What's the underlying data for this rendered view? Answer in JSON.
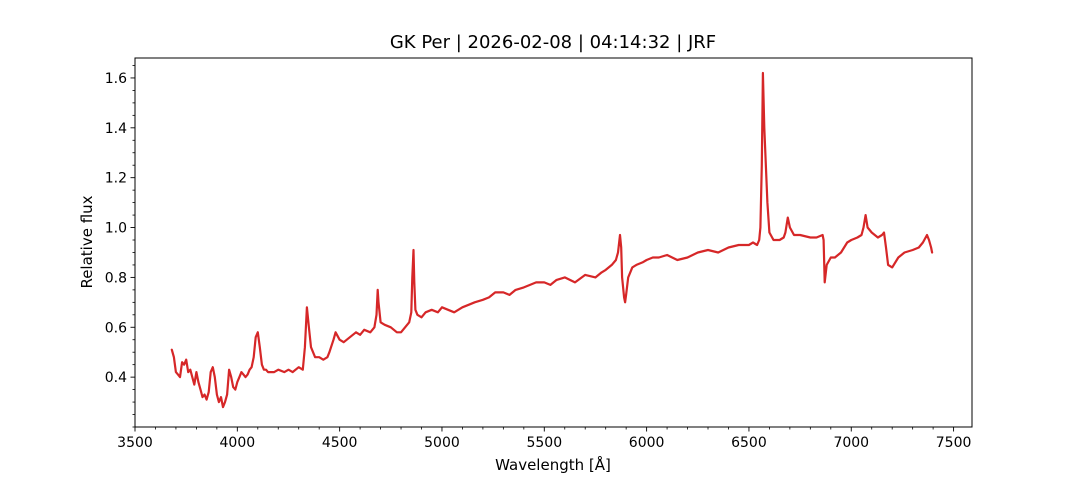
{
  "chart_data": {
    "type": "line",
    "title": "GK Per | 2026-02-08 | 04:14:32 | JRF",
    "xlabel": "Wavelength [Å]",
    "ylabel": "Relative flux",
    "xlim": [
      3500,
      7590
    ],
    "ylim": [
      0.2,
      1.68
    ],
    "x_major_ticks": [
      3500,
      4000,
      4500,
      5000,
      5500,
      6000,
      6500,
      7000,
      7500
    ],
    "x_tick_labels": [
      "3500",
      "4000",
      "4500",
      "5000",
      "5500",
      "6000",
      "6500",
      "7000",
      "7500"
    ],
    "y_major_ticks": [
      0.4,
      0.6,
      0.8,
      1.0,
      1.2,
      1.4,
      1.6
    ],
    "y_tick_labels": [
      "0.4",
      "0.6",
      "0.8",
      "1.0",
      "1.2",
      "1.4",
      "1.6"
    ],
    "x_minor_step": 100,
    "y_minor_step": 0.05,
    "grid": false,
    "line_color": "#d62728",
    "series": [
      {
        "x": [
          3680,
          3690,
          3700,
          3710,
          3720,
          3730,
          3740,
          3750,
          3760,
          3770,
          3780,
          3790,
          3800,
          3810,
          3820,
          3830,
          3840,
          3850,
          3860,
          3870,
          3880,
          3890,
          3900,
          3910,
          3920,
          3930,
          3940,
          3950,
          3960,
          3970,
          3980,
          3990,
          4000,
          4010,
          4020,
          4030,
          4040,
          4050,
          4060,
          4070,
          4080,
          4090,
          4100,
          4110,
          4120,
          4130,
          4140,
          4150,
          4180,
          4200,
          4230,
          4250,
          4270,
          4300,
          4320,
          4330,
          4340,
          4350,
          4360,
          4380,
          4400,
          4420,
          4440,
          4450,
          4470,
          4480,
          4500,
          4520,
          4550,
          4580,
          4600,
          4620,
          4650,
          4670,
          4680,
          4686,
          4690,
          4700,
          4720,
          4750,
          4780,
          4800,
          4820,
          4840,
          4850,
          4855,
          4861,
          4865,
          4870,
          4880,
          4900,
          4920,
          4950,
          4980,
          5000,
          5030,
          5060,
          5080,
          5100,
          5130,
          5160,
          5200,
          5230,
          5260,
          5300,
          5330,
          5360,
          5400,
          5430,
          5460,
          5500,
          5530,
          5560,
          5600,
          5650,
          5700,
          5750,
          5780,
          5800,
          5830,
          5850,
          5860,
          5870,
          5876,
          5880,
          5890,
          5895,
          5900,
          5910,
          5930,
          5950,
          5980,
          6000,
          6030,
          6060,
          6100,
          6150,
          6200,
          6250,
          6300,
          6350,
          6400,
          6450,
          6500,
          6520,
          6540,
          6550,
          6556,
          6563,
          6568,
          6575,
          6590,
          6600,
          6620,
          6650,
          6670,
          6678,
          6690,
          6700,
          6720,
          6750,
          6800,
          6830,
          6860,
          6865,
          6870,
          6880,
          6900,
          6920,
          6950,
          6980,
          7000,
          7030,
          7050,
          7060,
          7070,
          7080,
          7100,
          7130,
          7150,
          7160,
          7170,
          7180,
          7200,
          7230,
          7260,
          7300,
          7330,
          7350,
          7370,
          7380,
          7390,
          7395
        ],
        "y": [
          0.51,
          0.48,
          0.42,
          0.41,
          0.4,
          0.46,
          0.45,
          0.47,
          0.42,
          0.43,
          0.4,
          0.37,
          0.42,
          0.38,
          0.35,
          0.32,
          0.33,
          0.31,
          0.34,
          0.42,
          0.44,
          0.4,
          0.33,
          0.3,
          0.32,
          0.28,
          0.3,
          0.33,
          0.43,
          0.4,
          0.36,
          0.35,
          0.38,
          0.4,
          0.42,
          0.41,
          0.4,
          0.41,
          0.43,
          0.44,
          0.48,
          0.56,
          0.58,
          0.52,
          0.45,
          0.43,
          0.43,
          0.42,
          0.42,
          0.43,
          0.42,
          0.43,
          0.42,
          0.44,
          0.43,
          0.52,
          0.68,
          0.6,
          0.52,
          0.48,
          0.48,
          0.47,
          0.48,
          0.5,
          0.55,
          0.58,
          0.55,
          0.54,
          0.56,
          0.58,
          0.57,
          0.59,
          0.58,
          0.6,
          0.65,
          0.75,
          0.7,
          0.62,
          0.61,
          0.6,
          0.58,
          0.58,
          0.6,
          0.62,
          0.66,
          0.8,
          0.91,
          0.78,
          0.67,
          0.65,
          0.64,
          0.66,
          0.67,
          0.66,
          0.68,
          0.67,
          0.66,
          0.67,
          0.68,
          0.69,
          0.7,
          0.71,
          0.72,
          0.74,
          0.74,
          0.73,
          0.75,
          0.76,
          0.77,
          0.78,
          0.78,
          0.77,
          0.79,
          0.8,
          0.78,
          0.81,
          0.8,
          0.82,
          0.83,
          0.85,
          0.87,
          0.9,
          0.97,
          0.92,
          0.8,
          0.72,
          0.7,
          0.73,
          0.8,
          0.84,
          0.85,
          0.86,
          0.87,
          0.88,
          0.88,
          0.89,
          0.87,
          0.88,
          0.9,
          0.91,
          0.9,
          0.92,
          0.93,
          0.93,
          0.94,
          0.93,
          0.95,
          1.0,
          1.25,
          1.62,
          1.4,
          1.1,
          0.98,
          0.95,
          0.95,
          0.96,
          0.98,
          1.04,
          1.0,
          0.97,
          0.97,
          0.96,
          0.96,
          0.97,
          0.95,
          0.78,
          0.85,
          0.88,
          0.88,
          0.9,
          0.94,
          0.95,
          0.96,
          0.97,
          1.0,
          1.05,
          1.0,
          0.98,
          0.96,
          0.97,
          0.98,
          0.92,
          0.85,
          0.84,
          0.88,
          0.9,
          0.91,
          0.92,
          0.94,
          0.97,
          0.95,
          0.92,
          0.9
        ]
      }
    ]
  }
}
